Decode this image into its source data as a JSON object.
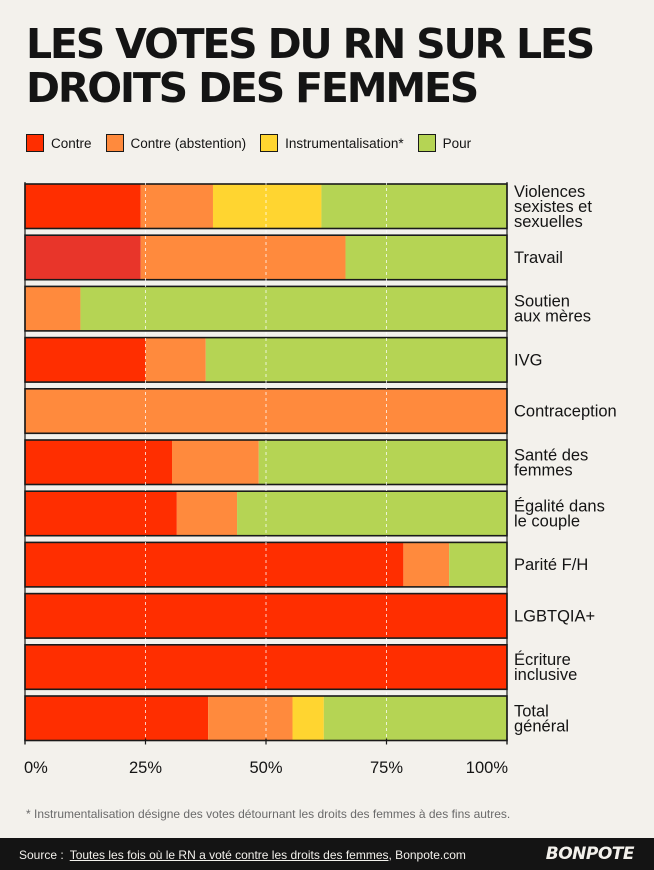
{
  "title_lines": [
    "LES VOTES DU RN SUR LES",
    "DROITS DES FEMMES"
  ],
  "legend": [
    {
      "label": "Contre",
      "color": "#ff2e00"
    },
    {
      "label": "Contre (abstention)",
      "color": "#ff8a3d"
    },
    {
      "label": "Instrumentalisation*",
      "color": "#ffd530"
    },
    {
      "label": "Pour",
      "color": "#b5d454"
    }
  ],
  "chart_data": {
    "type": "bar",
    "orientation": "horizontal",
    "stacked": true,
    "x_ticks": [
      "0%",
      "25%",
      "50%",
      "75%",
      "100%"
    ],
    "xlim": [
      0,
      100
    ],
    "categories": [
      [
        "Violences",
        "sexistes et",
        "sexuelles"
      ],
      [
        "Travail"
      ],
      [
        "Soutien",
        "aux mères"
      ],
      [
        "IVG"
      ],
      [
        "Contraception"
      ],
      [
        "Santé des",
        "femmes"
      ],
      [
        "Égalité dans",
        "le couple"
      ],
      [
        "Parité F/H"
      ],
      [
        "LGBTQIA+"
      ],
      [
        "Écriture",
        "inclusive"
      ],
      [
        "Total",
        "général"
      ]
    ],
    "series": [
      {
        "name": "Contre",
        "color": "#ff2e00",
        "values": [
          24,
          24,
          0,
          25,
          0,
          30.5,
          31.5,
          78.5,
          100,
          100,
          38
        ]
      },
      {
        "name": "Contre (abstention)",
        "color": "#ff8a3d",
        "values": [
          15,
          42.5,
          11.5,
          12.5,
          100,
          18,
          12.5,
          9.5,
          0,
          0,
          17.5
        ]
      },
      {
        "name": "Instrumentalisation*",
        "color": "#ffd530",
        "values": [
          22.5,
          0,
          0,
          0,
          0,
          0,
          0,
          0,
          0,
          0,
          6.5
        ]
      },
      {
        "name": "Pour",
        "color": "#b5d454",
        "values": [
          38.5,
          33.5,
          88.5,
          62.5,
          0,
          51.5,
          56,
          12,
          0,
          0,
          38
        ]
      }
    ],
    "bar_overrides": {
      "1": {
        "Contre": "#e8352a"
      }
    }
  },
  "footnote": "* Instrumentalisation désigne des votes détournant les droits des femmes à des fins autres.",
  "footer": {
    "source_label": "Source :",
    "source_text": "Toutes les fois où le RN a voté contre les droits des femmes",
    "source_site": ", Bonpote.com",
    "logo": "BONPOTE"
  }
}
